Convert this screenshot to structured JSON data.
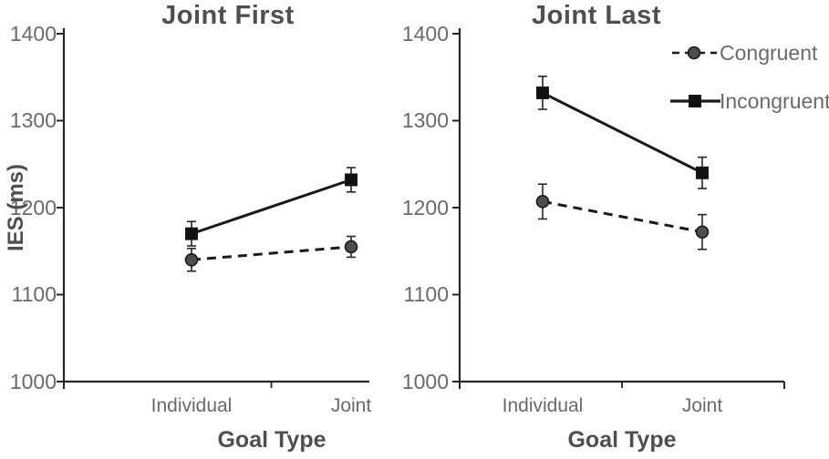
{
  "figure": {
    "ylabel": "IES (ms)",
    "text_color": "#595959",
    "title_color": "#4f4f4f",
    "axis_color": "#262626",
    "background": "#ffffff"
  },
  "chart_data": [
    {
      "type": "line",
      "title": "Joint First",
      "xlabel": "Goal Type",
      "ylabel": "IES (ms)",
      "categories": [
        "Individual",
        "Joint"
      ],
      "ylim": [
        1000,
        1400
      ],
      "yticks": [
        1000,
        1100,
        1200,
        1300,
        1400
      ],
      "ytick_labels": [
        "1000",
        "1100",
        "1200",
        "1300",
        "1400"
      ],
      "grid": false,
      "legend": false,
      "error_bars": true,
      "series": [
        {
          "name": "Congruent",
          "values": [
            1140,
            1155
          ],
          "errors": [
            13,
            12
          ],
          "marker": "circle",
          "marker_fill": "#4d4d4d",
          "line_style": "dashed",
          "color": "#1a1a1a"
        },
        {
          "name": "Incongruent",
          "values": [
            1170,
            1232
          ],
          "errors": [
            14,
            14
          ],
          "marker": "square",
          "marker_fill": "#111111",
          "line_style": "solid",
          "color": "#1a1a1a"
        }
      ]
    },
    {
      "type": "line",
      "title": "Joint Last",
      "xlabel": "Goal Type",
      "ylabel": "IES (ms)",
      "categories": [
        "Individual",
        "Joint"
      ],
      "ylim": [
        1000,
        1400
      ],
      "yticks": [
        1000,
        1100,
        1200,
        1300,
        1400
      ],
      "ytick_labels": [
        "1000",
        "1100",
        "1200",
        "1300",
        "1400"
      ],
      "grid": false,
      "legend": true,
      "legend_position": "upper-right",
      "error_bars": true,
      "series": [
        {
          "name": "Congruent",
          "values": [
            1207,
            1172
          ],
          "errors": [
            20,
            20
          ],
          "marker": "circle",
          "marker_fill": "#4d4d4d",
          "line_style": "dashed",
          "color": "#1a1a1a"
        },
        {
          "name": "Incongruent",
          "values": [
            1332,
            1240
          ],
          "errors": [
            19,
            18
          ],
          "marker": "square",
          "marker_fill": "#111111",
          "line_style": "solid",
          "color": "#1a1a1a"
        }
      ]
    }
  ]
}
